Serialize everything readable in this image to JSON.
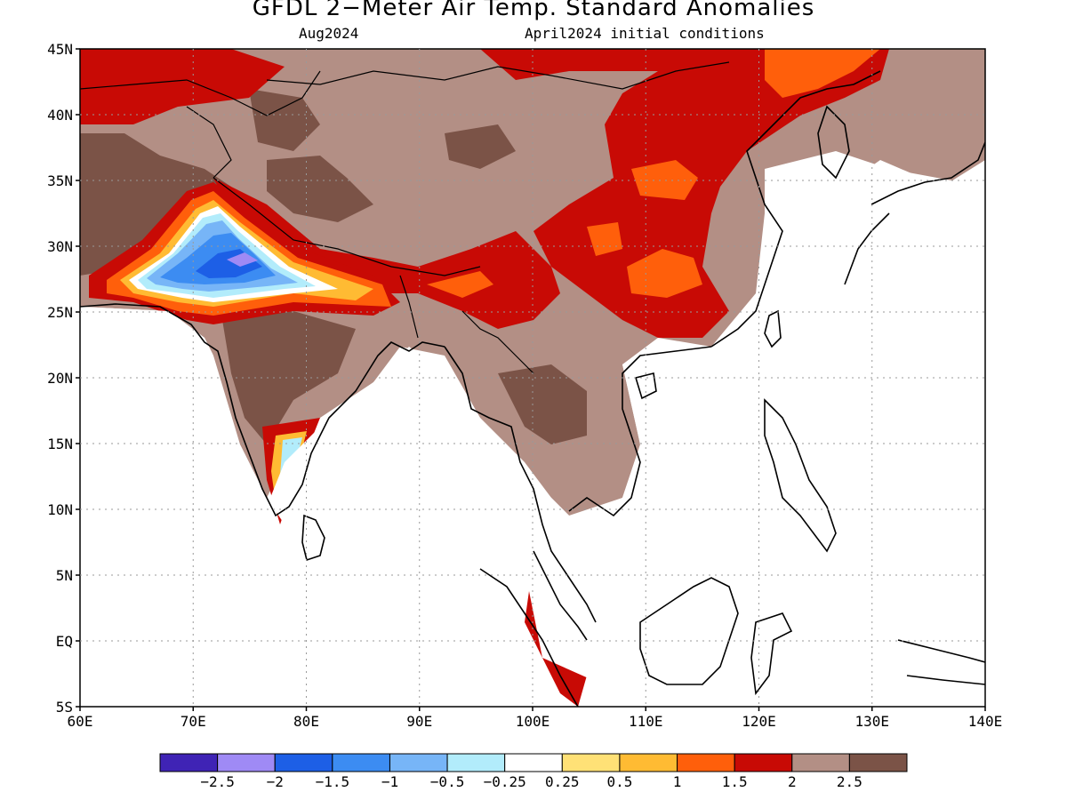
{
  "header": {
    "title": "GFDL 2−Meter Air Temp. Standard Anomalies",
    "subtitle_left": "Aug2024",
    "subtitle_right": "April2024 initial conditions"
  },
  "axes": {
    "lat_ticks": [
      "45N",
      "40N",
      "35N",
      "30N",
      "25N",
      "20N",
      "15N",
      "10N",
      "5N",
      "EQ",
      "5S"
    ],
    "lon_ticks": [
      "60E",
      "70E",
      "80E",
      "90E",
      "100E",
      "110E",
      "120E",
      "130E",
      "140E"
    ],
    "lat_range": [
      -5,
      45
    ],
    "lon_range": [
      60,
      140
    ]
  },
  "legend": {
    "colors": [
      "#3f23b5",
      "#9f8af5",
      "#1d5fe6",
      "#3c8cf2",
      "#77b5f7",
      "#b2ecfb",
      "#ffffff",
      "#ffe176",
      "#ffbb33",
      "#ff5f0b",
      "#c80a05",
      "#b38f85",
      "#7b5347"
    ],
    "labels": [
      "−2.5",
      "−2",
      "−1.5",
      "−1",
      "−0.5",
      "−0.25",
      "0.25",
      "0.5",
      "1",
      "1.5",
      "2",
      "2.5"
    ]
  }
}
